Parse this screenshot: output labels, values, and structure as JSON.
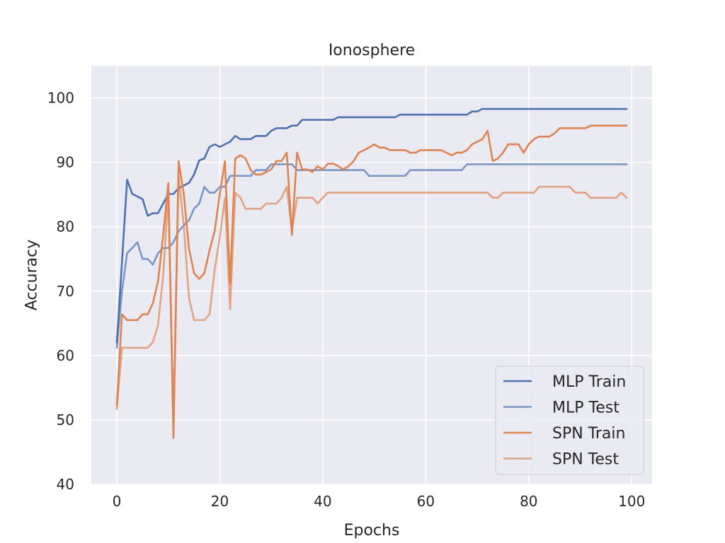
{
  "chart_data": {
    "type": "line",
    "title": "Ionosphere",
    "xlabel": "Epochs",
    "ylabel": "Accuracy",
    "xlim": [
      -4.95,
      103.95
    ],
    "ylim": [
      40,
      105
    ],
    "xticks": [
      0,
      20,
      40,
      60,
      80,
      100
    ],
    "yticks": [
      40,
      50,
      60,
      70,
      80,
      90,
      100
    ],
    "grid": true,
    "background": "#eaeaf2",
    "legend_position": "lower-right",
    "series": [
      {
        "name": "MLP Train",
        "color": "#4c72b0",
        "opacity": 1.0,
        "values": [
          62.0,
          74.5,
          87.3,
          85.1,
          84.7,
          84.3,
          81.7,
          82.1,
          82.1,
          83.6,
          85.1,
          85.1,
          86.0,
          86.4,
          86.8,
          88.1,
          90.3,
          90.6,
          92.4,
          92.8,
          92.4,
          92.8,
          93.2,
          94.1,
          93.6,
          93.6,
          93.6,
          94.1,
          94.1,
          94.1,
          94.9,
          95.3,
          95.3,
          95.3,
          95.7,
          95.7,
          96.6,
          96.6,
          96.6,
          96.6,
          96.6,
          96.6,
          96.6,
          97.0,
          97.0,
          97.0,
          97.0,
          97.0,
          97.0,
          97.0,
          97.0,
          97.0,
          97.0,
          97.0,
          97.0,
          97.4,
          97.4,
          97.4,
          97.4,
          97.4,
          97.4,
          97.4,
          97.4,
          97.4,
          97.4,
          97.4,
          97.4,
          97.4,
          97.4,
          97.9,
          97.9,
          98.3,
          98.3,
          98.3,
          98.3,
          98.3,
          98.3,
          98.3,
          98.3,
          98.3,
          98.3,
          98.3,
          98.3,
          98.3,
          98.3,
          98.3,
          98.3,
          98.3,
          98.3,
          98.3,
          98.3,
          98.3,
          98.3,
          98.3,
          98.3,
          98.3,
          98.3,
          98.3,
          98.3,
          98.3
        ]
      },
      {
        "name": "MLP Test",
        "color": "#4c72b0",
        "opacity": 0.7,
        "values": [
          61.2,
          70.0,
          75.9,
          76.7,
          77.6,
          75.0,
          75.0,
          74.1,
          75.9,
          76.7,
          76.7,
          77.6,
          79.3,
          80.2,
          81.0,
          82.8,
          83.6,
          86.2,
          85.3,
          85.3,
          86.2,
          86.2,
          87.9,
          87.9,
          87.9,
          87.9,
          87.9,
          88.8,
          88.8,
          88.8,
          89.7,
          89.7,
          89.7,
          89.7,
          89.7,
          88.8,
          88.8,
          88.8,
          88.8,
          88.8,
          88.8,
          88.8,
          88.8,
          88.8,
          88.8,
          88.8,
          88.8,
          88.8,
          88.8,
          87.9,
          87.9,
          87.9,
          87.9,
          87.9,
          87.9,
          87.9,
          87.9,
          88.8,
          88.8,
          88.8,
          88.8,
          88.8,
          88.8,
          88.8,
          88.8,
          88.8,
          88.8,
          88.8,
          89.7,
          89.7,
          89.7,
          89.7,
          89.7,
          89.7,
          89.7,
          89.7,
          89.7,
          89.7,
          89.7,
          89.7,
          89.7,
          89.7,
          89.7,
          89.7,
          89.7,
          89.7,
          89.7,
          89.7,
          89.7,
          89.7,
          89.7,
          89.7,
          89.7,
          89.7,
          89.7,
          89.7,
          89.7,
          89.7,
          89.7,
          89.7
        ]
      },
      {
        "name": "SPN Train",
        "color": "#dd8452",
        "opacity": 1.0,
        "values": [
          52.3,
          66.4,
          65.5,
          65.5,
          65.5,
          66.4,
          66.4,
          68.1,
          71.5,
          78.7,
          86.8,
          47.2,
          90.2,
          85.1,
          76.7,
          72.8,
          71.9,
          72.8,
          76.3,
          79.3,
          85.1,
          90.2,
          71.1,
          90.6,
          91.1,
          90.6,
          88.8,
          88.1,
          88.1,
          88.5,
          88.9,
          90.2,
          90.2,
          91.5,
          78.7,
          91.5,
          88.9,
          88.9,
          88.5,
          89.4,
          88.9,
          89.8,
          89.8,
          89.4,
          88.9,
          89.4,
          90.2,
          91.5,
          91.9,
          92.3,
          92.8,
          92.3,
          92.3,
          91.9,
          91.9,
          91.9,
          91.9,
          91.5,
          91.5,
          91.9,
          91.9,
          91.9,
          91.9,
          91.9,
          91.5,
          91.1,
          91.5,
          91.5,
          91.9,
          92.8,
          93.2,
          93.6,
          94.9,
          90.2,
          90.6,
          91.5,
          92.8,
          92.8,
          92.8,
          91.5,
          92.8,
          93.6,
          94.0,
          94.0,
          94.0,
          94.5,
          95.3,
          95.3,
          95.3,
          95.3,
          95.3,
          95.3,
          95.7,
          95.7,
          95.7,
          95.7,
          95.7,
          95.7,
          95.7,
          95.7
        ]
      },
      {
        "name": "SPN Test",
        "color": "#dd8452",
        "opacity": 0.7,
        "values": [
          51.7,
          61.2,
          61.2,
          61.2,
          61.2,
          61.2,
          61.2,
          62.1,
          64.7,
          72.4,
          85.3,
          50.0,
          87.9,
          80.2,
          69.0,
          65.5,
          65.5,
          65.5,
          66.4,
          73.3,
          78.4,
          84.5,
          67.2,
          85.3,
          84.5,
          82.8,
          82.8,
          82.8,
          82.8,
          83.6,
          83.6,
          83.6,
          84.5,
          86.2,
          79.3,
          84.5,
          84.5,
          84.5,
          84.5,
          83.6,
          84.5,
          85.3,
          85.3,
          85.3,
          85.3,
          85.3,
          85.3,
          85.3,
          85.3,
          85.3,
          85.3,
          85.3,
          85.3,
          85.3,
          85.3,
          85.3,
          85.3,
          85.3,
          85.3,
          85.3,
          85.3,
          85.3,
          85.3,
          85.3,
          85.3,
          85.3,
          85.3,
          85.3,
          85.3,
          85.3,
          85.3,
          85.3,
          85.3,
          84.5,
          84.5,
          85.3,
          85.3,
          85.3,
          85.3,
          85.3,
          85.3,
          85.3,
          86.2,
          86.2,
          86.2,
          86.2,
          86.2,
          86.2,
          86.2,
          85.3,
          85.3,
          85.3,
          84.5,
          84.5,
          84.5,
          84.5,
          84.5,
          84.5,
          85.3,
          84.5
        ]
      }
    ]
  }
}
